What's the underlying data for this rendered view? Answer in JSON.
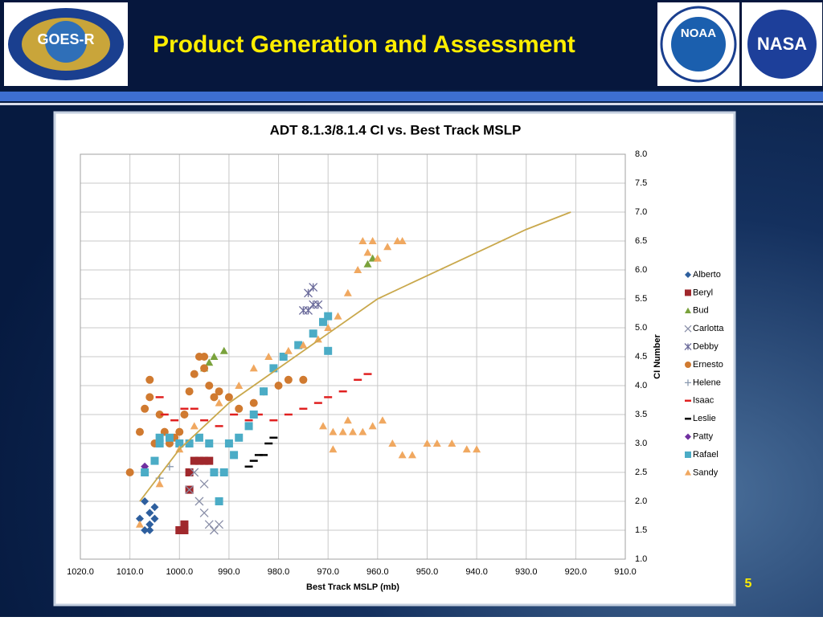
{
  "header": {
    "title": "Product Generation and Assessment",
    "logos": [
      "GOES-R",
      "NOAA",
      "NASA"
    ]
  },
  "page_number": "5",
  "chart_data": {
    "type": "scatter",
    "title": "ADT 8.1.3/8.1.4 CI vs. Best Track MSLP",
    "x_label": "Best Track MSLP (mb)",
    "y_label": "CI Number",
    "xlim": [
      1020,
      910
    ],
    "xticks": [
      {
        "value": 1020,
        "label": "1020.0"
      },
      {
        "value": 1010,
        "label": "1010.0"
      },
      {
        "value": 1000,
        "label": "1000.0"
      },
      {
        "value": 990,
        "label": "990.0"
      },
      {
        "value": 980,
        "label": "980.0"
      },
      {
        "value": 970,
        "label": "970.0"
      },
      {
        "value": 960,
        "label": "960.0"
      },
      {
        "value": 950,
        "label": "950.0"
      },
      {
        "value": 940,
        "label": "940.0"
      },
      {
        "value": 930,
        "label": "930.0"
      },
      {
        "value": 920,
        "label": "920.0"
      },
      {
        "value": 910,
        "label": "910.0"
      }
    ],
    "ylim": [
      1,
      8
    ],
    "yticks": [
      {
        "value": 1,
        "label": "1.0"
      },
      {
        "value": 1.5,
        "label": "1.5"
      },
      {
        "value": 2,
        "label": "2.0"
      },
      {
        "value": 2.5,
        "label": "2.5"
      },
      {
        "value": 3,
        "label": "3.0"
      },
      {
        "value": 3.5,
        "label": "3.5"
      },
      {
        "value": 4,
        "label": "4.0"
      },
      {
        "value": 4.5,
        "label": "4.5"
      },
      {
        "value": 5,
        "label": "5.0"
      },
      {
        "value": 5.5,
        "label": "5.5"
      },
      {
        "value": 6,
        "label": "6.0"
      },
      {
        "value": 6.5,
        "label": "6.5"
      },
      {
        "value": 7,
        "label": "7.0"
      },
      {
        "value": 7.5,
        "label": "7.5"
      },
      {
        "value": 8,
        "label": "8.0"
      }
    ],
    "grid": true,
    "legend": "right",
    "series": [
      {
        "name": "Alberto",
        "color": "#2e5f9e",
        "marker": "diamond",
        "x": [
          1008,
          1007,
          1006,
          1006,
          1005,
          1005,
          1007,
          1006
        ],
        "values": [
          1.7,
          1.5,
          1.6,
          1.8,
          1.7,
          1.9,
          2.0,
          1.5
        ]
      },
      {
        "name": "Beryl",
        "color": "#a0282c",
        "marker": "square",
        "x": [
          1000,
          999,
          998,
          997,
          996,
          995,
          994,
          999,
          998
        ],
        "values": [
          1.5,
          1.5,
          2.5,
          2.7,
          2.7,
          2.7,
          2.7,
          1.6,
          2.2
        ]
      },
      {
        "name": "Bud",
        "color": "#7aa23c",
        "marker": "triangle",
        "x": [
          995,
          994,
          993,
          991,
          962,
          961
        ],
        "values": [
          4.3,
          4.4,
          4.5,
          4.6,
          6.1,
          6.2
        ]
      },
      {
        "name": "Carlotta",
        "color": "#8a8fa8",
        "marker": "x",
        "x": [
          998,
          996,
          995,
          994,
          993,
          992,
          997,
          995
        ],
        "values": [
          2.2,
          2.0,
          1.8,
          1.6,
          1.5,
          1.6,
          2.5,
          2.3
        ]
      },
      {
        "name": "Debby",
        "color": "#6a6a9a",
        "marker": "asterisk",
        "x": [
          975,
          974,
          973,
          972,
          974,
          973
        ],
        "values": [
          5.3,
          5.3,
          5.4,
          5.4,
          5.6,
          5.7
        ]
      },
      {
        "name": "Ernesto",
        "color": "#d07a30",
        "marker": "circle",
        "x": [
          1010,
          1008,
          1007,
          1006,
          1006,
          1005,
          1004,
          1003,
          1002,
          1001,
          1000,
          999,
          998,
          997,
          996,
          995,
          995,
          994,
          993,
          992,
          990,
          988,
          985,
          983,
          980,
          978,
          975
        ],
        "values": [
          2.5,
          3.2,
          3.6,
          4.1,
          3.8,
          3.0,
          3.5,
          3.2,
          3.0,
          3.1,
          3.2,
          3.5,
          3.9,
          4.2,
          4.5,
          4.5,
          4.3,
          4.0,
          3.8,
          3.9,
          3.8,
          3.6,
          3.7,
          3.9,
          4.0,
          4.1,
          4.1
        ]
      },
      {
        "name": "Helene",
        "color": "#8a9ab0",
        "marker": "plus",
        "x": [
          1004,
          1002
        ],
        "values": [
          2.4,
          2.6
        ]
      },
      {
        "name": "Isaac",
        "color": "#e02020",
        "marker": "dash",
        "x": [
          1004,
          1003,
          1001,
          999,
          997,
          995,
          992,
          989,
          986,
          984,
          981,
          978,
          975,
          972,
          970,
          967,
          964,
          962
        ],
        "values": [
          3.8,
          3.5,
          3.4,
          3.6,
          3.6,
          3.4,
          3.3,
          3.5,
          3.4,
          3.5,
          3.4,
          3.5,
          3.6,
          3.7,
          3.8,
          3.9,
          4.1,
          4.2
        ]
      },
      {
        "name": "Leslie",
        "color": "#000000",
        "marker": "dash",
        "x": [
          986,
          985,
          984,
          983,
          982,
          981
        ],
        "values": [
          2.6,
          2.7,
          2.8,
          2.8,
          3.0,
          3.1
        ]
      },
      {
        "name": "Patty",
        "color": "#7030a0",
        "marker": "diamond",
        "x": [
          1007
        ],
        "values": [
          2.6
        ]
      },
      {
        "name": "Rafael",
        "color": "#4bacc6",
        "marker": "square",
        "x": [
          1007,
          1005,
          1004,
          1004,
          1002,
          1000,
          998,
          996,
          994,
          993,
          992,
          991,
          990,
          989,
          988,
          986,
          985,
          983,
          981,
          979,
          976,
          973,
          971,
          970,
          970
        ],
        "values": [
          2.5,
          2.7,
          3.0,
          3.1,
          3.1,
          3.0,
          3.0,
          3.1,
          3.0,
          2.5,
          2.0,
          2.5,
          3.0,
          2.8,
          3.1,
          3.3,
          3.5,
          3.9,
          4.3,
          4.5,
          4.7,
          4.9,
          5.1,
          5.2,
          4.6
        ]
      },
      {
        "name": "Sandy",
        "color": "#f0a860",
        "marker": "triangle",
        "x": [
          1008,
          1004,
          1000,
          997,
          992,
          988,
          985,
          982,
          978,
          975,
          972,
          970,
          968,
          966,
          964,
          963,
          962,
          961,
          960,
          958,
          956,
          955,
          971,
          969,
          967,
          965,
          963,
          961,
          959,
          957,
          955,
          953,
          950,
          948,
          945,
          942,
          940,
          969,
          966
        ],
        "values": [
          1.6,
          2.3,
          2.9,
          3.3,
          3.7,
          4.0,
          4.3,
          4.5,
          4.6,
          4.7,
          4.8,
          5.0,
          5.2,
          5.6,
          6.0,
          6.5,
          6.3,
          6.5,
          6.2,
          6.4,
          6.5,
          6.5,
          3.3,
          3.2,
          3.2,
          3.2,
          3.2,
          3.3,
          3.4,
          3.0,
          2.8,
          2.8,
          3.0,
          3.0,
          3.0,
          2.9,
          2.9,
          2.9,
          3.4
        ]
      }
    ],
    "fit_line": {
      "color": "#c9a84c",
      "x": [
        1008,
        1000,
        990,
        980,
        970,
        960,
        950,
        940,
        930,
        921
      ],
      "values": [
        2.0,
        2.9,
        3.7,
        4.3,
        4.9,
        5.5,
        5.9,
        6.3,
        6.7,
        7.0
      ]
    }
  }
}
